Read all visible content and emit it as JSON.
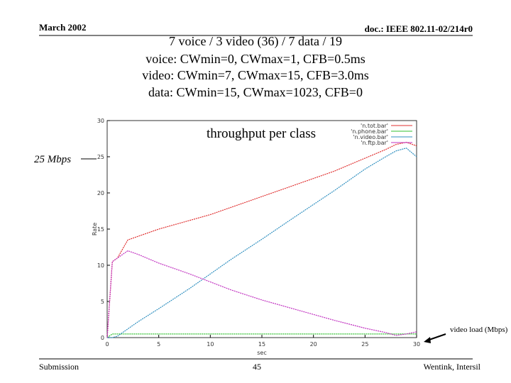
{
  "slide": {
    "date": "March 2002",
    "doc": "doc.: IEEE 802.11-02/214r0",
    "title_lines": [
      "7 voice / 3 video (36) / 7 data / 19",
      "voice: CWmin=0, CWmax=1, CFB=0.5ms",
      "video: CWmin=7, CWmax=15, CFB=3.0ms",
      "data: CWmin=15, CWmax=1023, CFB=0"
    ],
    "footer_left": "Submission",
    "page": "45",
    "footer_right": "Wentink, Intersil"
  },
  "chart_data": {
    "type": "line",
    "xlabel": "sec",
    "ylabel": "Rate",
    "annotations": [
      "throughput per class",
      "25 Mbps",
      "video load (Mbps)"
    ],
    "x": [
      0,
      0.5,
      1,
      2,
      3,
      5,
      8,
      10,
      12,
      15,
      18,
      20,
      22,
      25,
      27,
      28,
      29,
      30
    ],
    "series": [
      {
        "name": "'n.tot.bar'",
        "color": "#e03030",
        "values": [
          0,
          10.5,
          11,
          13.5,
          14,
          15,
          16.2,
          17,
          18,
          19.5,
          21,
          22,
          23,
          24.8,
          26,
          26.7,
          27,
          26.5
        ]
      },
      {
        "name": "'n.phone.bar'",
        "color": "#30c030",
        "values": [
          0,
          0.5,
          0.5,
          0.5,
          0.5,
          0.5,
          0.5,
          0.5,
          0.5,
          0.5,
          0.5,
          0.5,
          0.5,
          0.5,
          0.5,
          0.5,
          0.5,
          0.5
        ]
      },
      {
        "name": "'n.video.bar'",
        "color": "#3090c0",
        "values": [
          0,
          0,
          0.2,
          1.2,
          2.2,
          4,
          6.8,
          8.8,
          10.8,
          13.6,
          16.5,
          18.4,
          20.3,
          23.3,
          25,
          25.8,
          26.2,
          25
        ]
      },
      {
        "name": "'n.ftp.bar'",
        "color": "#c030c0",
        "values": [
          0,
          10.5,
          11,
          12,
          11.5,
          10.3,
          8.8,
          7.7,
          6.6,
          5.2,
          4,
          3.2,
          2.4,
          1.3,
          0.7,
          0.3,
          0.5,
          0.8
        ]
      }
    ],
    "xlim": [
      0,
      30
    ],
    "xticks": [
      0,
      5,
      10,
      15,
      20,
      25,
      30
    ],
    "ylim": [
      0,
      30
    ],
    "yticks": [
      0,
      5,
      10,
      15,
      20,
      25,
      30
    ],
    "legend": "upper-right"
  }
}
